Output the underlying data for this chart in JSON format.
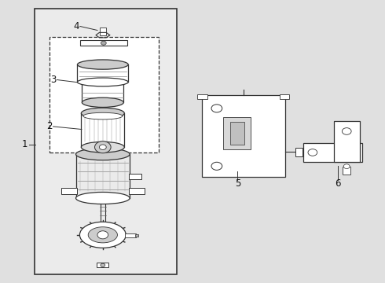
{
  "bg_color": "#e0e0e0",
  "line_color": "#333333",
  "label_color": "#111111"
}
